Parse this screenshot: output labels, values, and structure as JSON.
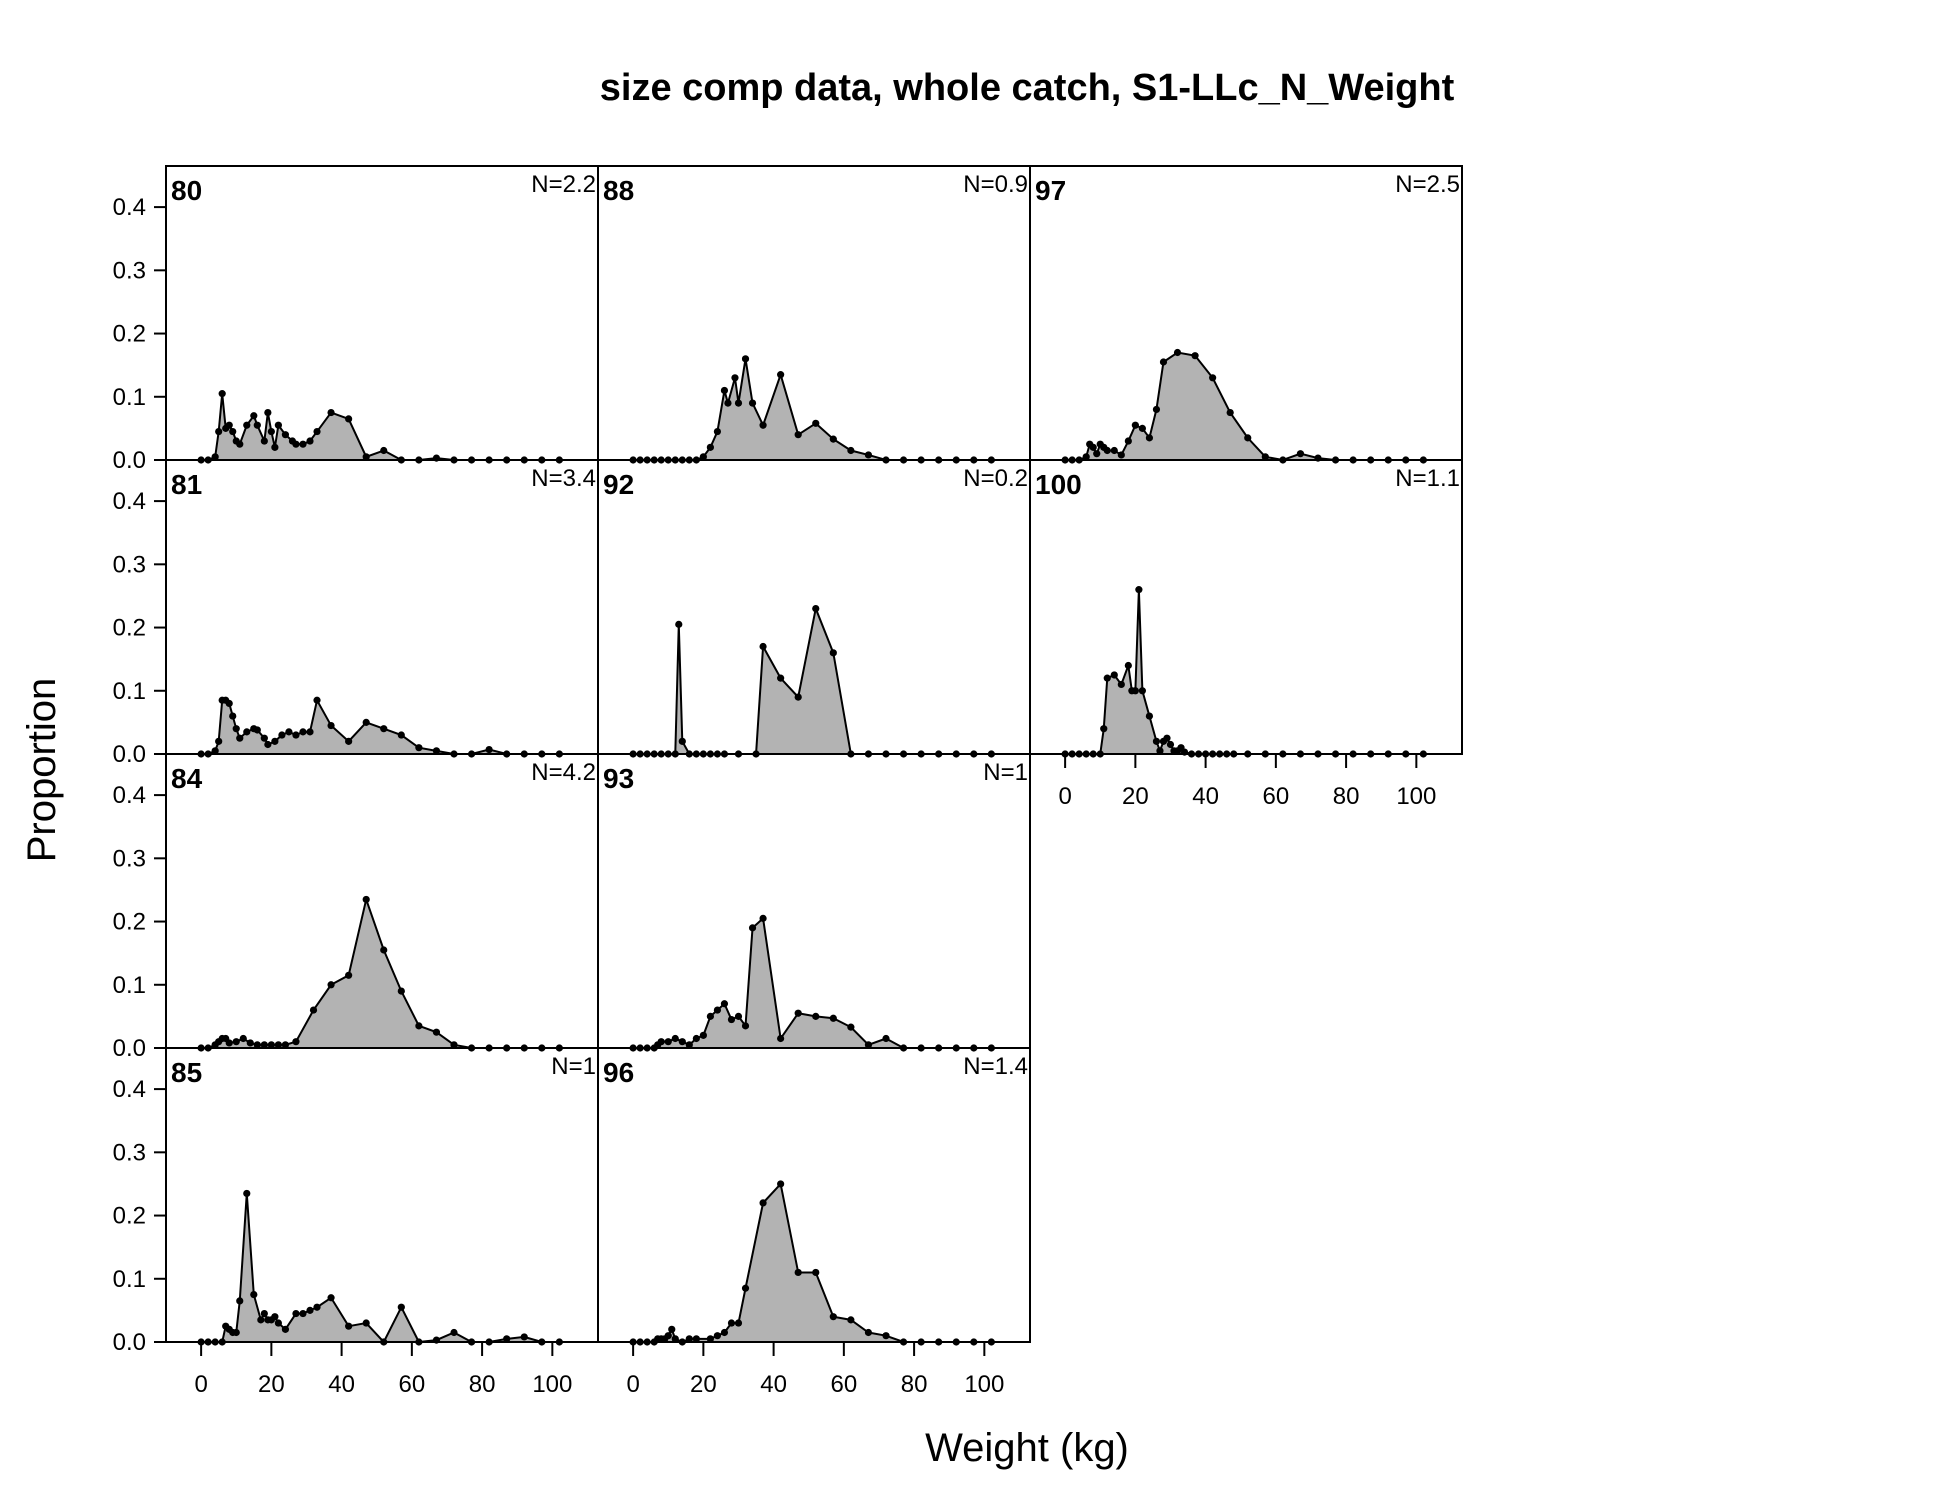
{
  "chart_data": {
    "type": "area",
    "title": "size comp data, whole catch, S1-LLc_N_Weight",
    "xlabel": "Weight (kg)",
    "ylabel": "Proportion",
    "xlim": [
      -10,
      113
    ],
    "ylim": [
      0,
      0.465
    ],
    "x_ticks": [
      0,
      20,
      40,
      60,
      80,
      100
    ],
    "x_tick_labels": [
      "0",
      "20",
      "40",
      "60",
      "80",
      "100"
    ],
    "y_ticks": [
      0,
      0.1,
      0.2,
      0.3,
      0.4
    ],
    "y_tick_labels": [
      "0.0",
      "0.1",
      "0.2",
      "0.3",
      "0.4"
    ],
    "fill_color": "#b3b3b3",
    "line_color": "#000000",
    "panels": [
      {
        "id": "80",
        "n_label": "N=2.2",
        "x": [
          0,
          2,
          4,
          5,
          6,
          7,
          8,
          9,
          10,
          11,
          13,
          15,
          16,
          18,
          19,
          20,
          21,
          22,
          24,
          26,
          27,
          29,
          31,
          33,
          37,
          42,
          47,
          52,
          57,
          62,
          67,
          72,
          77,
          82,
          87,
          92,
          97,
          102
        ],
        "y": [
          0,
          0,
          0.005,
          0.045,
          0.105,
          0.05,
          0.055,
          0.045,
          0.03,
          0.025,
          0.055,
          0.07,
          0.055,
          0.03,
          0.075,
          0.045,
          0.02,
          0.055,
          0.04,
          0.03,
          0.025,
          0.025,
          0.03,
          0.045,
          0.075,
          0.065,
          0.005,
          0.015,
          0,
          0,
          0.003,
          0,
          0,
          0,
          0,
          0,
          0,
          0
        ]
      },
      {
        "id": "81",
        "n_label": "N=3.4",
        "x": [
          0,
          2,
          4,
          5,
          6,
          7,
          8,
          9,
          10,
          11,
          13,
          15,
          16,
          18,
          19,
          21,
          23,
          25,
          27,
          29,
          31,
          33,
          37,
          42,
          47,
          52,
          57,
          62,
          67,
          72,
          77,
          82,
          87,
          92,
          97,
          102
        ],
        "y": [
          0,
          0,
          0.005,
          0.02,
          0.085,
          0.085,
          0.08,
          0.06,
          0.04,
          0.025,
          0.035,
          0.04,
          0.038,
          0.025,
          0.015,
          0.02,
          0.03,
          0.035,
          0.03,
          0.035,
          0.035,
          0.085,
          0.045,
          0.02,
          0.05,
          0.04,
          0.03,
          0.01,
          0.005,
          0,
          0,
          0.007,
          0,
          0,
          0,
          0
        ],
        "y_fix": true
      },
      {
        "id": "84",
        "n_label": "N=4.2",
        "x": [
          0,
          2,
          4,
          5,
          6,
          7,
          8,
          10,
          12,
          14,
          16,
          18,
          20,
          22,
          24,
          27,
          32,
          37,
          42,
          47,
          52,
          57,
          62,
          67,
          72,
          77,
          82,
          87,
          92,
          97,
          102
        ],
        "y": [
          0,
          0,
          0.005,
          0.01,
          0.015,
          0.015,
          0.008,
          0.01,
          0.015,
          0.008,
          0.005,
          0.005,
          0.005,
          0.005,
          0.005,
          0.01,
          0.06,
          0.1,
          0.115,
          0.235,
          0.155,
          0.09,
          0.035,
          0.025,
          0.005,
          0,
          0,
          0,
          0,
          0,
          0
        ]
      },
      {
        "id": "85",
        "n_label": "N=1",
        "x": [
          0,
          2,
          4,
          6,
          7,
          8,
          9,
          10,
          11,
          13,
          15,
          17,
          18,
          19,
          20,
          21,
          22,
          24,
          27,
          29,
          31,
          33,
          37,
          42,
          47,
          52,
          57,
          62,
          67,
          72,
          77,
          82,
          87,
          92,
          97,
          102
        ],
        "y": [
          0,
          0,
          0,
          0,
          0.025,
          0.02,
          0.015,
          0.015,
          0.065,
          0.235,
          0.075,
          0.035,
          0.045,
          0.035,
          0.035,
          0.04,
          0.03,
          0.02,
          0.045,
          0.045,
          0.05,
          0.055,
          0.07,
          0.025,
          0.03,
          0,
          0.055,
          0,
          0.003,
          0.015,
          0,
          0,
          0.005,
          0.008,
          0,
          0
        ]
      },
      {
        "id": "88",
        "n_label": "N=0.9",
        "x": [
          0,
          2,
          4,
          6,
          8,
          10,
          12,
          14,
          16,
          18,
          20,
          22,
          24,
          26,
          27,
          29,
          30,
          32,
          34,
          37,
          42,
          47,
          52,
          57,
          62,
          67,
          72,
          77,
          82,
          87,
          92,
          97,
          102
        ],
        "y": [
          0,
          0,
          0,
          0,
          0,
          0,
          0,
          0,
          0,
          0,
          0.005,
          0.02,
          0.045,
          0.11,
          0.09,
          0.13,
          0.09,
          0.16,
          0.09,
          0.055,
          0.135,
          0.04,
          0.058,
          0.033,
          0.015,
          0.008,
          0,
          0,
          0,
          0,
          0,
          0,
          0
        ]
      },
      {
        "id": "92",
        "n_label": "N=0.2",
        "x": [
          0,
          2,
          4,
          6,
          8,
          10,
          12,
          13,
          14,
          16,
          18,
          20,
          22,
          24,
          26,
          30,
          35,
          37,
          42,
          47,
          52,
          57,
          62,
          67,
          72,
          77,
          82,
          87,
          92,
          97,
          102
        ],
        "y": [
          0,
          0,
          0,
          0,
          0,
          0,
          0,
          0.205,
          0.02,
          0,
          0,
          0,
          0,
          0,
          0,
          0,
          0,
          0.17,
          0.12,
          0.09,
          0.23,
          0.16,
          0,
          0,
          0,
          0,
          0,
          0,
          0,
          0,
          0
        ]
      },
      {
        "id": "93",
        "n_label": "N=1",
        "x": [
          0,
          2,
          4,
          6,
          7,
          8,
          10,
          12,
          14,
          16,
          18,
          20,
          22,
          24,
          26,
          28,
          30,
          32,
          34,
          37,
          42,
          47,
          52,
          57,
          62,
          67,
          72,
          77,
          82,
          87,
          92,
          97,
          102
        ],
        "y": [
          0,
          0,
          0,
          0,
          0.005,
          0.01,
          0.01,
          0.015,
          0.01,
          0.005,
          0.015,
          0.02,
          0.05,
          0.06,
          0.07,
          0.045,
          0.05,
          0.035,
          0.19,
          0.205,
          0.015,
          0.055,
          0.05,
          0.047,
          0.033,
          0.005,
          0.015,
          0,
          0,
          0,
          0,
          0,
          0
        ]
      },
      {
        "id": "96",
        "n_label": "N=1.4",
        "x": [
          0,
          2,
          4,
          6,
          7,
          8,
          9,
          10,
          11,
          12,
          14,
          16,
          18,
          22,
          24,
          26,
          28,
          30,
          32,
          37,
          42,
          47,
          52,
          57,
          62,
          67,
          72,
          77,
          82,
          87,
          92,
          97,
          102
        ],
        "y": [
          0,
          0,
          0,
          0,
          0.005,
          0.005,
          0.005,
          0.01,
          0.02,
          0.005,
          0,
          0.005,
          0.005,
          0.005,
          0.01,
          0.015,
          0.03,
          0.03,
          0.085,
          0.22,
          0.25,
          0.11,
          0.11,
          0.04,
          0.035,
          0.015,
          0.01,
          0,
          0,
          0,
          0,
          0,
          0
        ]
      },
      {
        "id": "97",
        "n_label": "N=2.5",
        "x": [
          0,
          2,
          4,
          6,
          7,
          8,
          9,
          10,
          11,
          12,
          14,
          16,
          18,
          20,
          22,
          24,
          26,
          28,
          32,
          37,
          42,
          47,
          52,
          57,
          62,
          67,
          72,
          77,
          82,
          87,
          92,
          97,
          102
        ],
        "y": [
          0,
          0,
          0,
          0.005,
          0.025,
          0.02,
          0.01,
          0.025,
          0.02,
          0.015,
          0.015,
          0.008,
          0.03,
          0.055,
          0.05,
          0.035,
          0.08,
          0.155,
          0.17,
          0.165,
          0.13,
          0.075,
          0.035,
          0.005,
          0,
          0.01,
          0.003,
          0,
          0,
          0,
          0,
          0,
          0
        ]
      },
      {
        "id": "100",
        "n_label": "N=1.1",
        "x": [
          0,
          2,
          4,
          6,
          8,
          10,
          11,
          12,
          14,
          16,
          18,
          19,
          20,
          21,
          22,
          24,
          26,
          27,
          28,
          29,
          30,
          31,
          32,
          33,
          34,
          36,
          38,
          40,
          42,
          44,
          46,
          48,
          52,
          57,
          62,
          67,
          72,
          77,
          82,
          87,
          92,
          97,
          102
        ],
        "y": [
          0,
          0,
          0,
          0,
          0,
          0,
          0.04,
          0.12,
          0.125,
          0.11,
          0.14,
          0.1,
          0.1,
          0.26,
          0.1,
          0.06,
          0.02,
          0.005,
          0.02,
          0.025,
          0.015,
          0.005,
          0.005,
          0.01,
          0.003,
          0,
          0,
          0,
          0,
          0,
          0,
          0,
          0,
          0,
          0,
          0,
          0,
          0,
          0,
          0,
          0,
          0,
          0
        ]
      }
    ]
  }
}
